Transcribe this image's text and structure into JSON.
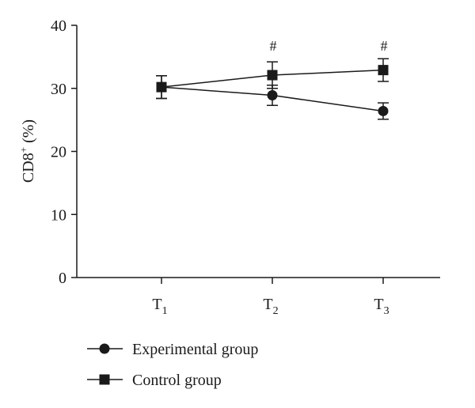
{
  "chart_data": {
    "type": "line",
    "ylabel": "CD8",
    "ylabel_superscript": "+",
    "ylabel_unit": " (%)",
    "ylim": [
      0,
      40
    ],
    "yticks": [
      "0",
      "10",
      "20",
      "30",
      "40"
    ],
    "categories": [
      {
        "main": "T",
        "sub": "1"
      },
      {
        "main": "T",
        "sub": "2"
      },
      {
        "main": "T",
        "sub": "3"
      }
    ],
    "series": [
      {
        "name": "Experimental group",
        "marker": "circle",
        "values": [
          30.2,
          28.9,
          26.4
        ],
        "errors": [
          1.8,
          1.6,
          1.3
        ],
        "color": "#1a1a1a"
      },
      {
        "name": "Control group",
        "marker": "square",
        "values": [
          30.2,
          32.1,
          32.9
        ],
        "errors": [
          1.8,
          2.1,
          1.8
        ],
        "color": "#1a1a1a"
      }
    ],
    "annotations": [
      {
        "category_index": 1,
        "text": "#"
      },
      {
        "category_index": 2,
        "text": "#"
      }
    ],
    "legend_position": "bottom-left",
    "grid": false
  }
}
